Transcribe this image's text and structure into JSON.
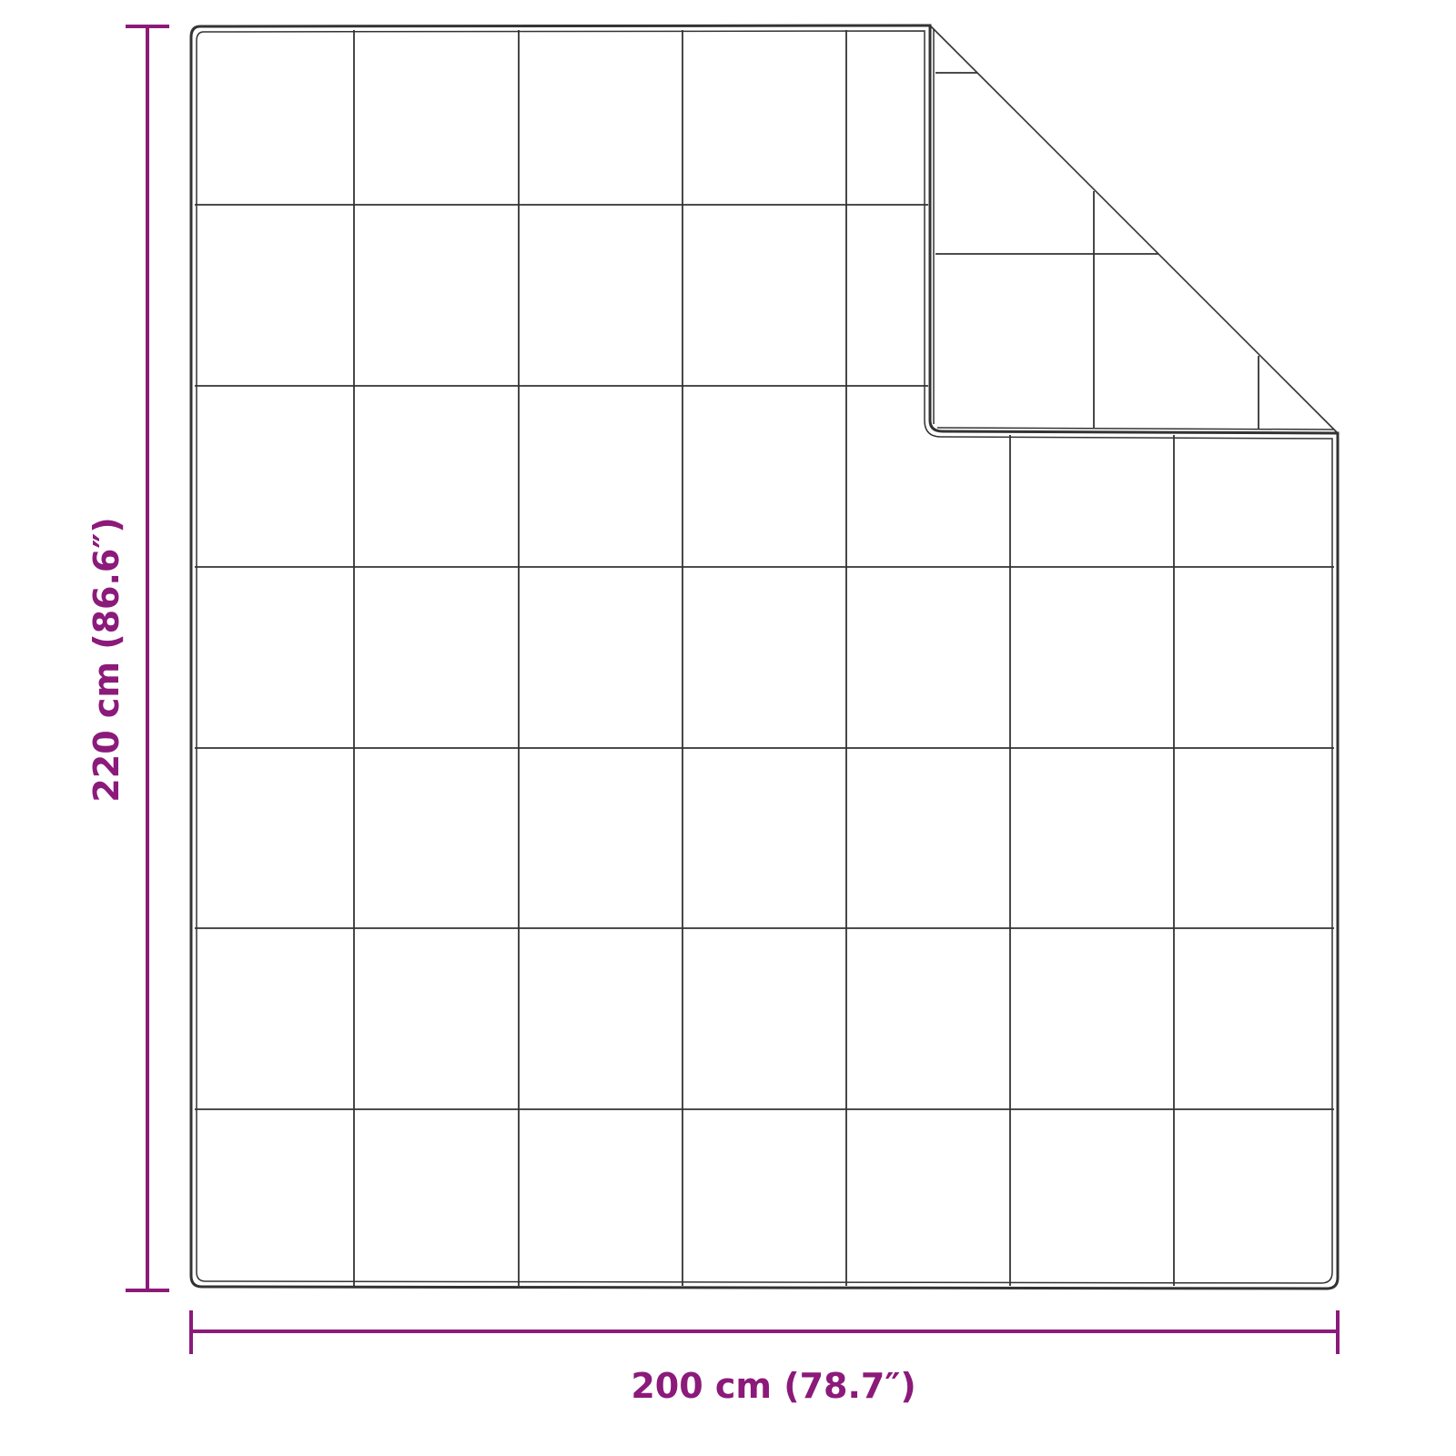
{
  "dimensions": {
    "width_label": "200 cm (78.7″)",
    "height_label": "220 cm (86.6″)"
  },
  "colors": {
    "dimension": "#8b1a7a",
    "outline": "#333333"
  }
}
